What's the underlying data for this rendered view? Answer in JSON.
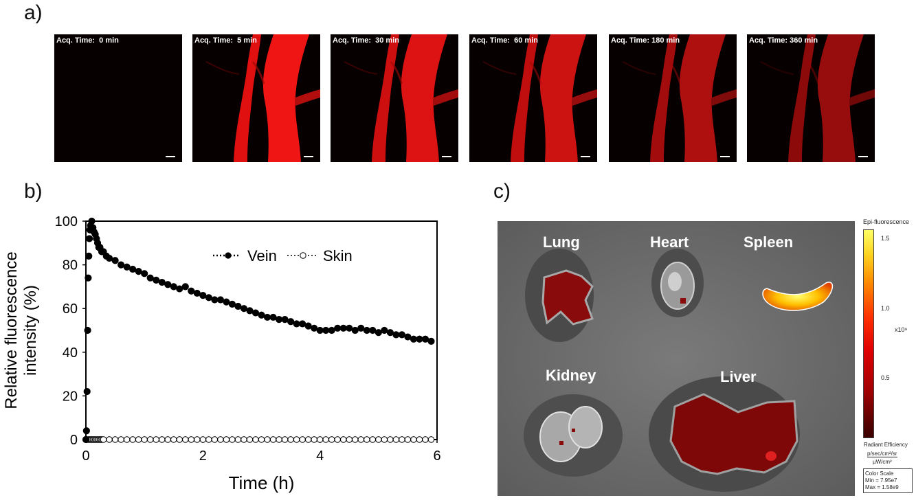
{
  "panels": {
    "a": "a)",
    "b": "b)",
    "c": "c)"
  },
  "panel_a": {
    "frames": [
      {
        "label": "Acq. Time:  0 min",
        "signal": 0.0
      },
      {
        "label": "Acq. Time:  5 min",
        "signal": 1.0
      },
      {
        "label": "Acq. Time:  30 min",
        "signal": 0.92
      },
      {
        "label": "Acq. Time:  60 min",
        "signal": 0.85
      },
      {
        "label": "Acq. Time: 180 min",
        "signal": 0.72
      },
      {
        "label": "Acq. Time: 360 min",
        "signal": 0.62
      }
    ]
  },
  "chart_data": {
    "type": "scatter",
    "xlabel": "Time (h)",
    "ylabel": [
      "Relative fluorescence",
      "intensity (%)"
    ],
    "xlim": [
      0,
      6
    ],
    "ylim": [
      0,
      100
    ],
    "xticks": [
      0,
      2,
      4,
      6
    ],
    "yticks": [
      0,
      20,
      40,
      60,
      80,
      100
    ],
    "legend": "top-right",
    "series": [
      {
        "name": "Vein",
        "marker": "filled-circle",
        "x": [
          0.0,
          0.01,
          0.02,
          0.03,
          0.04,
          0.05,
          0.06,
          0.07,
          0.08,
          0.1,
          0.12,
          0.14,
          0.16,
          0.18,
          0.2,
          0.22,
          0.24,
          0.27,
          0.3,
          0.35,
          0.4,
          0.5,
          0.6,
          0.7,
          0.8,
          0.9,
          1.0,
          1.1,
          1.2,
          1.3,
          1.4,
          1.5,
          1.6,
          1.7,
          1.8,
          1.9,
          2.0,
          2.1,
          2.2,
          2.3,
          2.4,
          2.5,
          2.6,
          2.7,
          2.8,
          2.9,
          3.0,
          3.1,
          3.2,
          3.3,
          3.4,
          3.5,
          3.6,
          3.7,
          3.8,
          3.9,
          4.0,
          4.1,
          4.2,
          4.3,
          4.4,
          4.5,
          4.6,
          4.7,
          4.8,
          4.9,
          5.0,
          5.1,
          5.2,
          5.3,
          5.4,
          5.5,
          5.6,
          5.7,
          5.8,
          5.9
        ],
        "y": [
          0,
          4,
          22,
          50,
          74,
          84,
          92,
          96,
          98,
          100,
          97,
          95,
          94,
          92,
          90,
          88,
          88,
          86,
          86,
          84,
          83,
          82,
          80,
          79,
          78,
          77,
          76,
          74,
          73,
          72,
          71,
          70,
          69,
          70,
          68,
          67,
          66,
          65,
          64,
          64,
          63,
          62,
          61,
          60,
          59,
          58,
          57,
          56,
          56,
          55,
          55,
          54,
          53,
          53,
          52,
          51,
          50,
          50,
          50,
          51,
          51,
          51,
          50,
          51,
          50,
          50,
          49,
          50,
          49,
          48,
          48,
          47,
          46,
          46,
          46,
          45
        ]
      },
      {
        "name": "Skin",
        "marker": "open-circle",
        "x": [
          0.0,
          0.02,
          0.04,
          0.06,
          0.08,
          0.1,
          0.12,
          0.14,
          0.16,
          0.18,
          0.2,
          0.22,
          0.24,
          0.26,
          0.28,
          0.3,
          0.4,
          0.5,
          0.6,
          0.7,
          0.8,
          0.9,
          1.0,
          1.1,
          1.2,
          1.3,
          1.4,
          1.5,
          1.6,
          1.7,
          1.8,
          1.9,
          2.0,
          2.1,
          2.2,
          2.3,
          2.4,
          2.5,
          2.6,
          2.7,
          2.8,
          2.9,
          3.0,
          3.1,
          3.2,
          3.3,
          3.4,
          3.5,
          3.6,
          3.7,
          3.8,
          3.9,
          4.0,
          4.1,
          4.2,
          4.3,
          4.4,
          4.5,
          4.6,
          4.7,
          4.8,
          4.9,
          5.0,
          5.1,
          5.2,
          5.3,
          5.4,
          5.5,
          5.6,
          5.7,
          5.8,
          5.9
        ],
        "y": [
          0,
          0,
          0,
          0,
          0,
          0,
          0,
          0,
          0,
          0,
          0,
          0,
          0,
          0,
          0,
          0,
          0,
          0,
          0,
          0,
          0,
          0,
          0,
          0,
          0,
          0,
          0,
          0,
          0,
          0,
          0,
          0,
          0,
          0,
          0,
          0,
          0,
          0,
          0,
          0,
          0,
          0,
          0,
          0,
          0,
          0,
          0,
          0,
          0,
          0,
          0,
          0,
          0,
          0,
          0,
          0,
          0,
          0,
          0,
          0,
          0,
          0,
          0,
          0,
          0,
          0,
          0,
          0,
          0,
          0,
          0,
          0
        ]
      }
    ]
  },
  "panel_c": {
    "organs": [
      "Lung",
      "Heart",
      "Spleen",
      "Kidney",
      "Liver"
    ],
    "colorbar": {
      "title": "Epi-fluorescence",
      "ticks": [
        "1.5",
        "1.0",
        "0.5"
      ],
      "exponent": "x10⁹",
      "unit_label": "Radiant Efficiency",
      "unit_num": "p/sec/cm²/sr",
      "unit_den": "µW/cm²",
      "scale_title": "Color Scale",
      "min": "Min = 7.95e7",
      "max": "Max = 1.58e9"
    }
  }
}
